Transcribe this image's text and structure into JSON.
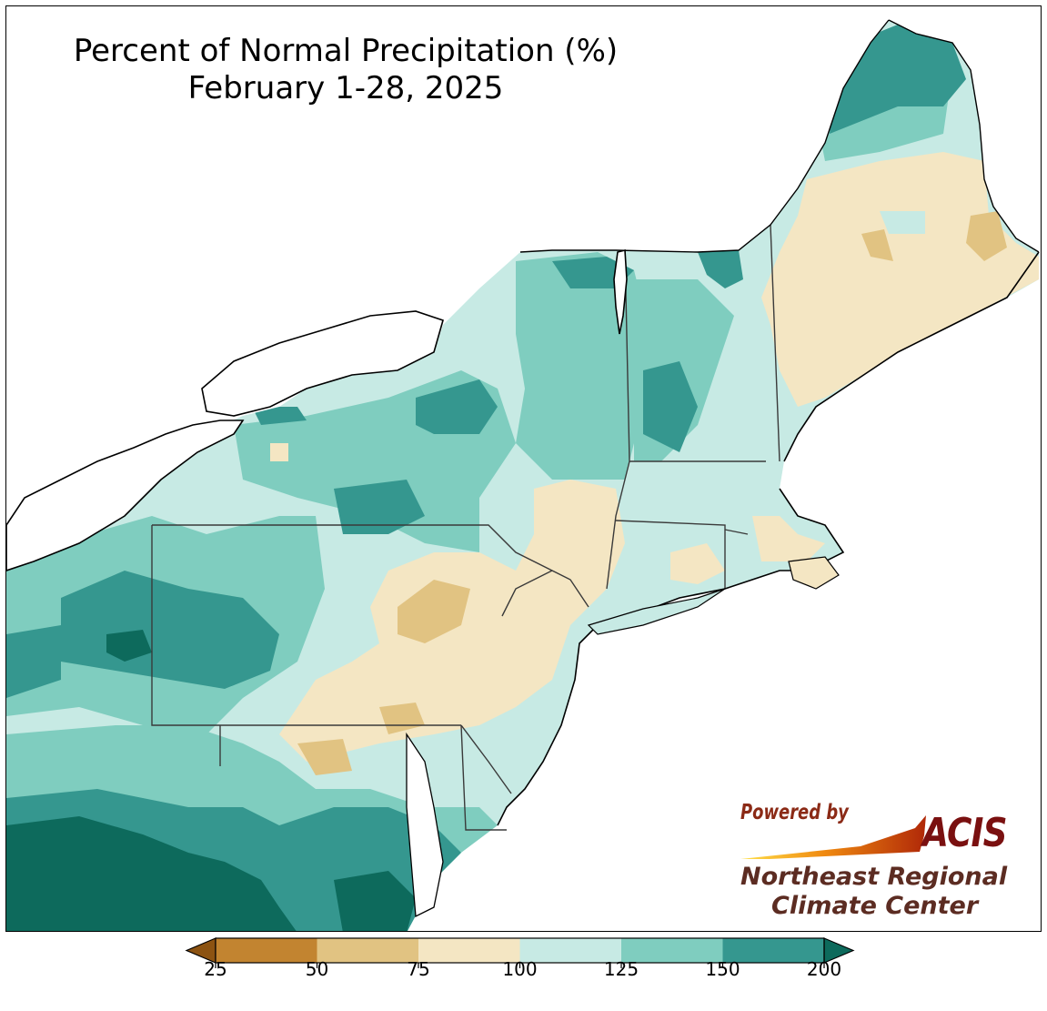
{
  "title": {
    "line1": "Percent of Normal Precipitation (%)",
    "line2": "February 1-28, 2025"
  },
  "logo": {
    "powered_by": "Powered by",
    "acis": "ACIS",
    "org_line1": "Northeast Regional",
    "org_line2": "Climate Center"
  },
  "legend": {
    "ticks": [
      "25",
      "50",
      "75",
      "100",
      "125",
      "150",
      "200"
    ],
    "bins": [
      {
        "range": "25-50",
        "color": "#c28430"
      },
      {
        "range": "50-75",
        "color": "#e1c382"
      },
      {
        "range": "75-100",
        "color": "#f4e6c3"
      },
      {
        "range": "100-125",
        "color": "#c7eae4"
      },
      {
        "range": "125-150",
        "color": "#7fcdbf"
      },
      {
        "range": "150-200",
        "color": "#35978f"
      }
    ],
    "under_color": "#8c5312",
    "over_color": "#0d6a5c"
  },
  "colors": {
    "very_wet": "#0d6a5c",
    "wet": "#35978f",
    "moist": "#7fcdbf",
    "near_normal_wet": "#c7eae4",
    "near_normal_dry": "#f4e6c3",
    "dry": "#e1c382",
    "very_dry": "#c28430"
  }
}
